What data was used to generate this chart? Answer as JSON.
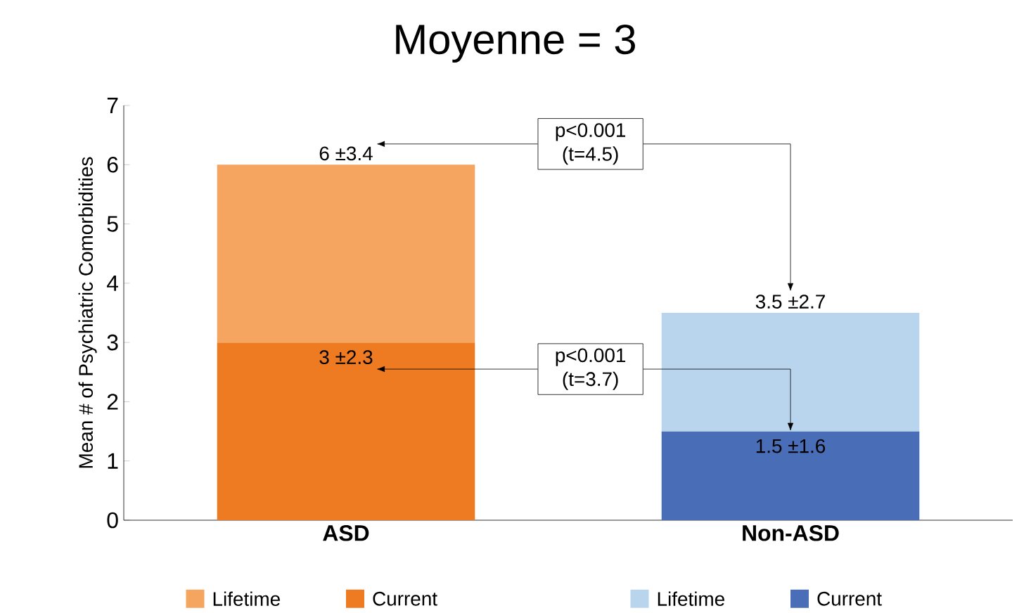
{
  "chart_data": {
    "type": "bar",
    "title": "Moyenne = 3",
    "ylabel": "Mean # of Psychiatric Comorbidities",
    "categories": [
      "ASD",
      "Non-ASD"
    ],
    "stacked": true,
    "legend": "bottom",
    "ylim": [
      0,
      7
    ],
    "yticks": [
      0,
      1,
      2,
      3,
      4,
      5,
      6,
      7
    ],
    "series": [
      {
        "name": "Current",
        "colors": [
          "#ee7a22",
          "#4a6db8"
        ],
        "values": [
          3,
          1.5
        ],
        "value_labels": [
          "3 ±2.3",
          "1.5 ±1.6"
        ]
      },
      {
        "name": "Lifetime",
        "colors": [
          "#f5a560",
          "#b9d5ee"
        ],
        "values": [
          3,
          2
        ]
      }
    ],
    "totals": [
      "6 ±3.4",
      "3.5 ±2.7"
    ],
    "annotations": [
      "p<0.001 (t=4.5)",
      {
        "text": "p<0.001 (t=3.7)",
        "x": "Non-ASD",
        "y": 1.5
      }
    ]
  }
}
